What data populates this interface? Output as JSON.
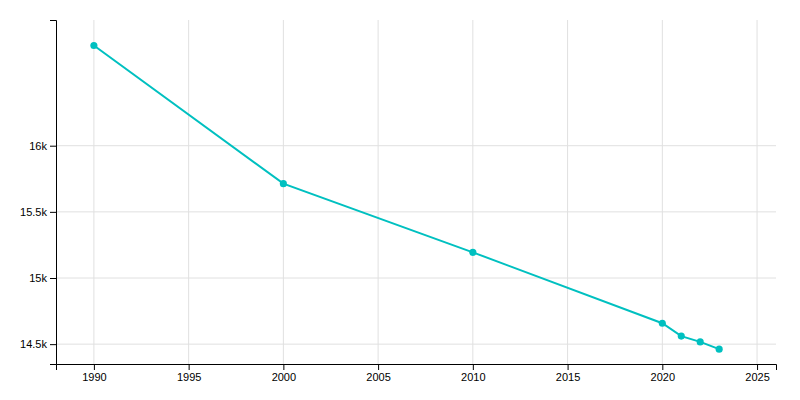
{
  "chart_data": {
    "type": "line",
    "x": [
      1990,
      2000,
      2010,
      2020,
      2021,
      2022,
      2023
    ],
    "values": [
      16757,
      15713,
      15194,
      14658,
      14561,
      14517,
      14462
    ],
    "color": "#00c0c0",
    "marker": "circle",
    "xlim": [
      1988,
      2026
    ],
    "ylim": [
      14350,
      16950
    ],
    "xticks": [
      1990,
      1995,
      2000,
      2005,
      2010,
      2015,
      2020,
      2025
    ],
    "yticks": [
      {
        "value": 14500,
        "label": "14.5k"
      },
      {
        "value": 15000,
        "label": "15k"
      },
      {
        "value": 15500,
        "label": "15.5k"
      },
      {
        "value": 16000,
        "label": "16k"
      }
    ],
    "grid": true
  }
}
